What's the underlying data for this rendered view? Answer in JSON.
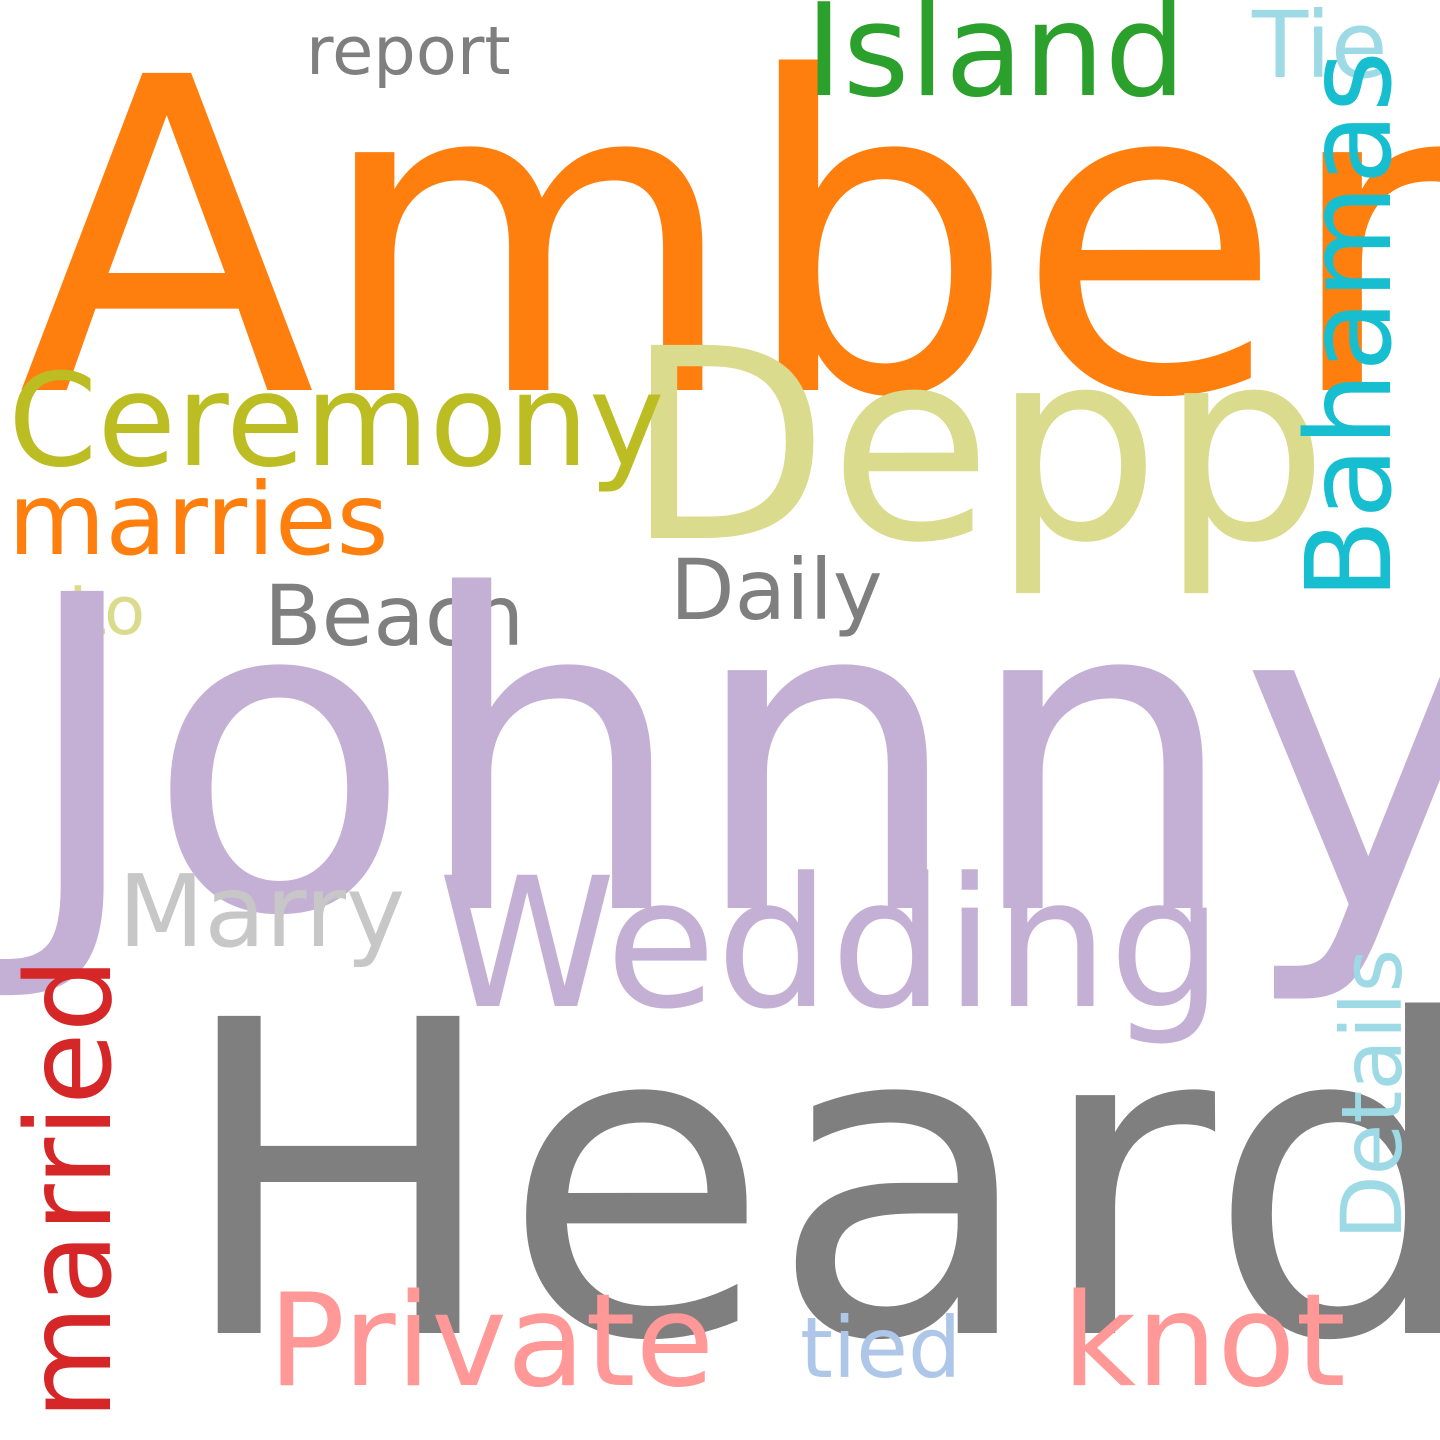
{
  "words": {
    "amber": {
      "text": "Amber",
      "color": "#ff7f0e"
    },
    "johnny": {
      "text": "Johnny",
      "color": "#c5b0d5"
    },
    "heard": {
      "text": "Heard",
      "color": "#7f7f7f"
    },
    "depp": {
      "text": "Depp",
      "color": "#dbdb8d"
    },
    "wedding": {
      "text": "Wedding",
      "color": "#c5b0d5"
    },
    "island": {
      "text": "Island",
      "color": "#2ca02c"
    },
    "ceremony": {
      "text": "Ceremony",
      "color": "#bcbd22"
    },
    "marries": {
      "text": "marries",
      "color": "#ff7f0e"
    },
    "bahamas": {
      "text": "Bahamas",
      "color": "#17becf"
    },
    "married": {
      "text": "married",
      "color": "#d62728"
    },
    "private": {
      "text": "Private",
      "color": "#ff9896"
    },
    "knot": {
      "text": "knot",
      "color": "#ff9896"
    },
    "marry": {
      "text": "Marry",
      "color": "#c7c7c7"
    },
    "daily": {
      "text": "Daily",
      "color": "#7f7f7f"
    },
    "beach": {
      "text": "Beach",
      "color": "#7f7f7f"
    },
    "report": {
      "text": "report",
      "color": "#7f7f7f"
    },
    "tie": {
      "text": "Tie",
      "color": "#9edae5"
    },
    "details": {
      "text": "Details",
      "color": "#9edae5"
    },
    "tied": {
      "text": "tied",
      "color": "#aec7e8"
    },
    "lo": {
      "text": "Lo",
      "color": "#dbdb8d"
    }
  }
}
